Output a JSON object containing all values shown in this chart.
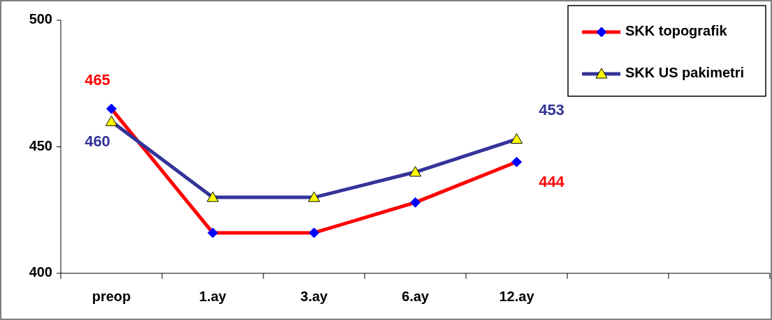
{
  "chart_data": {
    "type": "line",
    "categories": [
      "preop",
      "1.ay",
      "3.ay",
      "6.ay",
      "12.ay",
      null,
      null
    ],
    "series": [
      {
        "name": "SKK topografik",
        "color": "#ff0000",
        "marker": "diamond",
        "values": [
          465,
          416,
          416,
          428,
          444,
          null,
          null
        ],
        "value_labels": [
          "465",
          null,
          null,
          null,
          "444",
          null,
          null
        ]
      },
      {
        "name": "SKK US pakimetri",
        "color": "#333399",
        "marker": "triangle",
        "values": [
          460,
          430,
          430,
          440,
          453,
          null,
          null
        ],
        "value_labels": [
          "460",
          null,
          null,
          null,
          "453",
          null,
          null
        ]
      }
    ],
    "ylim": [
      400,
      500
    ],
    "yticks": [
      400,
      450,
      500
    ],
    "grid": false,
    "legend": "top right",
    "line_style": "solid"
  }
}
